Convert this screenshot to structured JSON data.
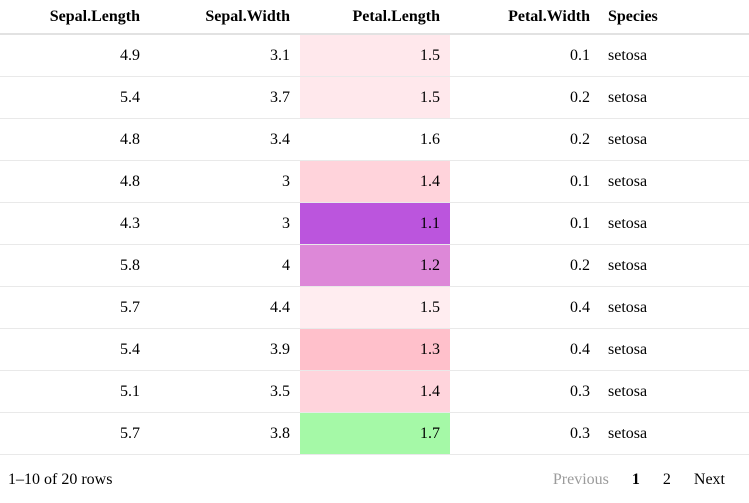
{
  "table": {
    "columns": [
      {
        "label": "Sepal.Length",
        "align": "right"
      },
      {
        "label": "Sepal.Width",
        "align": "right"
      },
      {
        "label": "Petal.Length",
        "align": "right"
      },
      {
        "label": "Petal.Width",
        "align": "right"
      },
      {
        "label": "Species",
        "align": "left"
      }
    ],
    "rows": [
      {
        "sepal_length": "4.9",
        "sepal_width": "3.1",
        "petal_length": "1.5",
        "petal_width": "0.1",
        "species": "setosa",
        "petal_bg": "#ffe8ec"
      },
      {
        "sepal_length": "5.4",
        "sepal_width": "3.7",
        "petal_length": "1.5",
        "petal_width": "0.2",
        "species": "setosa",
        "petal_bg": "#ffe8ec"
      },
      {
        "sepal_length": "4.8",
        "sepal_width": "3.4",
        "petal_length": "1.6",
        "petal_width": "0.2",
        "species": "setosa",
        "petal_bg": ""
      },
      {
        "sepal_length": "4.8",
        "sepal_width": "3",
        "petal_length": "1.4",
        "petal_width": "0.1",
        "species": "setosa",
        "petal_bg": "#ffd3db"
      },
      {
        "sepal_length": "4.3",
        "sepal_width": "3",
        "petal_length": "1.1",
        "petal_width": "0.1",
        "species": "setosa",
        "petal_bg": "#bb55dd"
      },
      {
        "sepal_length": "5.8",
        "sepal_width": "4",
        "petal_length": "1.2",
        "petal_width": "0.2",
        "species": "setosa",
        "petal_bg": "#dd88d8"
      },
      {
        "sepal_length": "5.7",
        "sepal_width": "4.4",
        "petal_length": "1.5",
        "petal_width": "0.4",
        "species": "setosa",
        "petal_bg": "#ffedf0"
      },
      {
        "sepal_length": "5.4",
        "sepal_width": "3.9",
        "petal_length": "1.3",
        "petal_width": "0.4",
        "species": "setosa",
        "petal_bg": "#ffc0cb"
      },
      {
        "sepal_length": "5.1",
        "sepal_width": "3.5",
        "petal_length": "1.4",
        "petal_width": "0.3",
        "species": "setosa",
        "petal_bg": "#ffd4dc"
      },
      {
        "sepal_length": "5.7",
        "sepal_width": "3.8",
        "petal_length": "1.7",
        "petal_width": "0.3",
        "species": "setosa",
        "petal_bg": "#a5f9a7"
      }
    ]
  },
  "footer": {
    "page_info": "1–10 of 20 rows",
    "previous_label": "Previous",
    "pages": [
      "1",
      "2"
    ],
    "current_page": "1",
    "next_label": "Next"
  },
  "colors": {
    "header_border": "#e2e2e2",
    "row_border": "#e9e9e9",
    "disabled_text": "#9b9b9b",
    "petal_low_purple": "#bb55dd",
    "petal_mid_pink": "#ffc0cb",
    "petal_high_green": "#a5f9a7"
  }
}
